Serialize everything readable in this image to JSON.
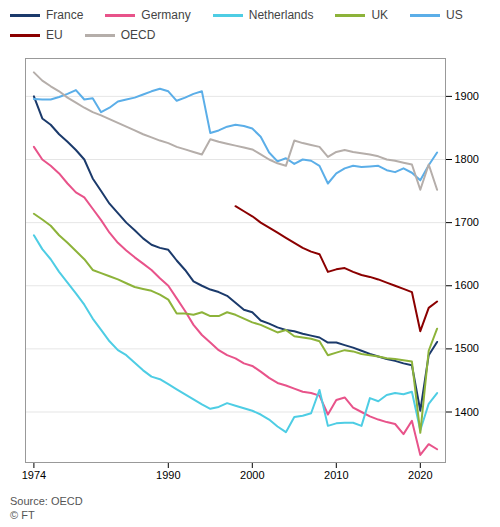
{
  "chart_data": {
    "type": "line",
    "annotations": [
      "Source: OECD\n© FT"
    ],
    "x": [
      1974,
      1975,
      1976,
      1977,
      1978,
      1979,
      1980,
      1981,
      1982,
      1983,
      1984,
      1985,
      1986,
      1987,
      1988,
      1989,
      1990,
      1991,
      1992,
      1993,
      1994,
      1995,
      1996,
      1997,
      1998,
      1999,
      2000,
      2001,
      2002,
      2003,
      2004,
      2005,
      2006,
      2007,
      2008,
      2009,
      2010,
      2011,
      2012,
      2013,
      2014,
      2015,
      2016,
      2017,
      2018,
      2019,
      2020,
      2021,
      2022
    ],
    "series": [
      {
        "name": "France",
        "color": "#1b3a6b",
        "values": [
          1900,
          1865,
          1855,
          1840,
          1828,
          1815,
          1800,
          1770,
          1750,
          1730,
          1715,
          1700,
          1688,
          1675,
          1665,
          1660,
          1657,
          1640,
          1625,
          1607,
          1600,
          1594,
          1590,
          1584,
          1573,
          1562,
          1558,
          1545,
          1540,
          1534,
          1530,
          1528,
          1524,
          1521,
          1518,
          1510,
          1510,
          1506,
          1502,
          1497,
          1492,
          1488,
          1484,
          1481,
          1477,
          1474,
          1402,
          1490,
          1511
        ]
      },
      {
        "name": "Germany",
        "color": "#e8538a",
        "values": [
          1820,
          1800,
          1790,
          1778,
          1762,
          1748,
          1740,
          1722,
          1704,
          1684,
          1668,
          1656,
          1645,
          1635,
          1625,
          1612,
          1600,
          1580,
          1560,
          1538,
          1522,
          1510,
          1498,
          1490,
          1485,
          1477,
          1473,
          1464,
          1454,
          1446,
          1442,
          1437,
          1432,
          1430,
          1426,
          1396,
          1419,
          1423,
          1407,
          1400,
          1393,
          1388,
          1384,
          1381,
          1365,
          1386,
          1332,
          1349,
          1341
        ]
      },
      {
        "name": "Netherlands",
        "color": "#4ecde4",
        "values": [
          1680,
          1658,
          1642,
          1622,
          1605,
          1588,
          1570,
          1548,
          1530,
          1512,
          1498,
          1490,
          1478,
          1466,
          1456,
          1452,
          1444,
          1436,
          1428,
          1420,
          1412,
          1405,
          1408,
          1414,
          1410,
          1406,
          1402,
          1396,
          1388,
          1377,
          1368,
          1392,
          1394,
          1398,
          1435,
          1378,
          1382,
          1383,
          1383,
          1378,
          1422,
          1417,
          1427,
          1430,
          1428,
          1432,
          1371,
          1413,
          1430
        ]
      },
      {
        "name": "UK",
        "color": "#8db33a",
        "values": [
          1714,
          1705,
          1695,
          1680,
          1668,
          1655,
          1642,
          1625,
          1620,
          1615,
          1610,
          1604,
          1598,
          1595,
          1592,
          1586,
          1578,
          1556,
          1556,
          1554,
          1558,
          1552,
          1552,
          1558,
          1554,
          1548,
          1542,
          1538,
          1532,
          1526,
          1530,
          1520,
          1518,
          1516,
          1512,
          1490,
          1494,
          1498,
          1496,
          1492,
          1490,
          1488,
          1485,
          1484,
          1482,
          1480,
          1367,
          1497,
          1532
        ]
      },
      {
        "name": "US",
        "color": "#5baee8",
        "values": [
          1896,
          1895,
          1895,
          1899,
          1904,
          1910,
          1895,
          1897,
          1875,
          1882,
          1892,
          1895,
          1898,
          1903,
          1908,
          1912,
          1908,
          1893,
          1898,
          1904,
          1908,
          1842,
          1846,
          1852,
          1855,
          1853,
          1849,
          1836,
          1811,
          1797,
          1802,
          1793,
          1800,
          1798,
          1790,
          1762,
          1778,
          1786,
          1790,
          1788,
          1789,
          1790,
          1783,
          1780,
          1786,
          1779,
          1767,
          1791,
          1811
        ]
      },
      {
        "name": "EU",
        "color": "#8b0000",
        "values": [
          null,
          null,
          null,
          null,
          null,
          null,
          null,
          null,
          null,
          null,
          null,
          null,
          null,
          null,
          null,
          null,
          null,
          null,
          null,
          null,
          null,
          null,
          null,
          null,
          1726,
          1718,
          1710,
          1700,
          1692,
          1684,
          1676,
          1668,
          1660,
          1654,
          1650,
          1622,
          1626,
          1628,
          1622,
          1617,
          1614,
          1610,
          1605,
          1600,
          1595,
          1590,
          1528,
          1565,
          1575
        ]
      },
      {
        "name": "OECD",
        "color": "#b5aeaa",
        "values": [
          1938,
          1925,
          1916,
          1908,
          1898,
          1890,
          1882,
          1875,
          1870,
          1864,
          1858,
          1852,
          1846,
          1840,
          1835,
          1830,
          1826,
          1820,
          1816,
          1812,
          1808,
          1832,
          1828,
          1825,
          1822,
          1819,
          1816,
          1808,
          1800,
          1794,
          1790,
          1830,
          1826,
          1823,
          1820,
          1804,
          1812,
          1815,
          1812,
          1810,
          1808,
          1805,
          1800,
          1798,
          1795,
          1792,
          1752,
          1792,
          1752
        ]
      }
    ],
    "xlim": [
      1973,
      2023
    ],
    "xticks": [
      1974,
      1990,
      2000,
      2010,
      2020
    ],
    "ylim": [
      1320,
      1960
    ],
    "yticks": [
      1400,
      1500,
      1600,
      1700,
      1800,
      1900
    ],
    "grid": true,
    "legend": "top"
  }
}
